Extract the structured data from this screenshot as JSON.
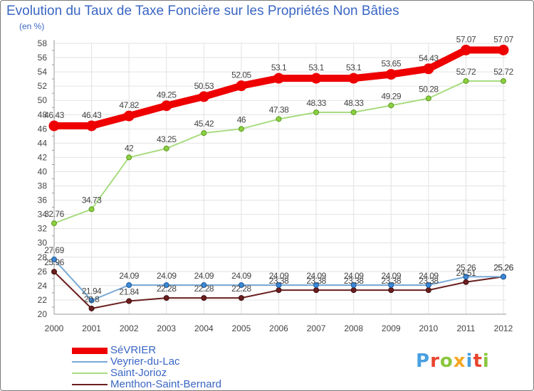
{
  "title": "Evolution du Taux de Taxe Foncière sur les Propriétés Non Bâties",
  "unit_label": "(en %)",
  "brand": {
    "text": "Proxiti",
    "colors": [
      "#4aa0e0",
      "#e8452f",
      "#8cc63f",
      "#f5a623",
      "#4aa0e0",
      "#e8452f",
      "#8cc63f"
    ]
  },
  "chart_data": {
    "type": "line",
    "title": "Evolution du Taux de Taxe Foncière sur les Propriétés Non Bâties",
    "ylabel": "(en %)",
    "xlabel": "",
    "x": [
      "2000",
      "2001",
      "2002",
      "2003",
      "2004",
      "2005",
      "2006",
      "2007",
      "2008",
      "2009",
      "2010",
      "2011",
      "2012"
    ],
    "ylim": [
      20,
      58
    ],
    "yticks": [
      20,
      22,
      24,
      26,
      28,
      30,
      32,
      34,
      36,
      38,
      40,
      42,
      44,
      46,
      48,
      50,
      52,
      54,
      56,
      58
    ],
    "grid": true,
    "legend_position": "bottom-left",
    "series": [
      {
        "name": "SéVRIER",
        "color": "#ee0000",
        "values": [
          46.43,
          46.43,
          47.82,
          49.25,
          50.53,
          52.05,
          53.1,
          53.1,
          53.1,
          53.65,
          54.43,
          57.07,
          57.07
        ],
        "labels": [
          "46.43",
          "46.43",
          "47.82",
          "49.25",
          "50.53",
          "52.05",
          "53.1",
          "53.1",
          "53.1",
          "53.65",
          "54.43",
          "57.07",
          "57.07"
        ]
      },
      {
        "name": "Veyrier-du-Lac",
        "color": "#7aaad6",
        "values": [
          27.69,
          21.94,
          24.09,
          24.09,
          24.09,
          24.09,
          24.09,
          24.09,
          24.09,
          24.09,
          24.09,
          25.26,
          25.26
        ],
        "labels": [
          "27.69",
          "21.94",
          "24.09",
          "24.09",
          "24.09",
          "24.09",
          "24.09",
          "24.09",
          "24.09",
          "24.09",
          "24.09",
          "25.26",
          "25.26"
        ]
      },
      {
        "name": "Saint-Jorioz",
        "color": "#a8dc80",
        "values": [
          32.76,
          34.73,
          42,
          43.25,
          45.42,
          46,
          47.38,
          48.33,
          48.33,
          49.29,
          50.28,
          52.72,
          52.72
        ],
        "labels": [
          "32.76",
          "34.73",
          "42",
          "43.25",
          "45.42",
          "46",
          "47.38",
          "48.33",
          "48.33",
          "49.29",
          "50.28",
          "52.72",
          "52.72"
        ]
      },
      {
        "name": "Menthon-Saint-Bernard",
        "color": "#6b1e1e",
        "values": [
          25.96,
          20.8,
          21.84,
          22.28,
          22.28,
          22.28,
          23.38,
          23.38,
          23.38,
          23.38,
          23.38,
          24.51,
          25.26
        ],
        "labels": [
          "25.96",
          "20.8",
          "21.84",
          "22.28",
          "22.28",
          "22.28",
          "23.38",
          "23.38",
          "23.38",
          "23.38",
          "23.38",
          "24.51",
          "25.26"
        ]
      }
    ]
  }
}
